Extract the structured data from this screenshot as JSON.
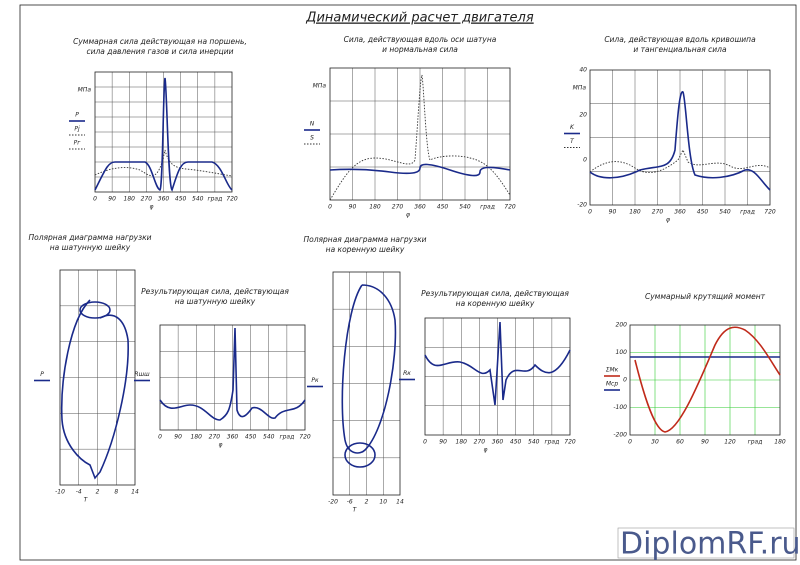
{
  "title": "Динамический расчет двигателя",
  "watermark": "DiplomRF.ru",
  "panels": [
    {
      "title": [
        "Суммарная сила действующая на поршень,",
        "сила давления газов и сила инерции"
      ],
      "unit": "МПа",
      "legend": [
        "P",
        "Pj",
        "Pг"
      ],
      "axis": "φ",
      "x_ticks": [
        "0",
        "90",
        "180",
        "270",
        "360",
        "450",
        "540",
        "град",
        "720"
      ],
      "y_ticks": []
    },
    {
      "title": [
        "Сила, действующая вдоль оси шатуна",
        "и нормальная сила"
      ],
      "unit": "МПа",
      "legend": [
        "N",
        "S"
      ],
      "axis": "φ",
      "x_ticks": [
        "0",
        "90",
        "180",
        "270",
        "360",
        "450",
        "540",
        "град",
        "720"
      ],
      "y_ticks": []
    },
    {
      "title": [
        "Сила, действующая вдоль кривошипа",
        "и тангенциальная сила"
      ],
      "unit": "МПа",
      "legend": [
        "K",
        "T"
      ],
      "axis": "φ",
      "x_ticks": [
        "0",
        "90",
        "180",
        "270",
        "360",
        "450",
        "540",
        "град",
        "720"
      ],
      "y_ticks": [
        "40",
        "20",
        "0",
        "-20"
      ]
    },
    {
      "title": [
        "Полярная диаграмма нагрузки",
        "на шатунную шейку"
      ],
      "unit": "",
      "legend": [
        "P"
      ],
      "axis": "T",
      "x_ticks": [
        "-10",
        "-4",
        "2",
        "8",
        "14"
      ],
      "y_ticks": []
    },
    {
      "title": [
        "Результирующая сила, действующая",
        "на шатунную шейку"
      ],
      "unit": "",
      "legend": [
        "Rшш"
      ],
      "axis": "φ",
      "x_ticks": [
        "0",
        "90",
        "180",
        "270",
        "360",
        "450",
        "540",
        "град",
        "720"
      ],
      "y_ticks": []
    },
    {
      "title": [
        "Полярная диаграмма нагрузки",
        "на коренную шейку"
      ],
      "unit": "",
      "legend": [
        "Pк"
      ],
      "axis": "T",
      "x_ticks": [
        "-20",
        "-6",
        "2",
        "10",
        "14"
      ],
      "y_ticks": []
    },
    {
      "title": [
        "Результирующая сила, действующая",
        "на коренную шейку"
      ],
      "unit": "",
      "legend": [
        "Rк"
      ],
      "axis": "φ",
      "x_ticks": [
        "0",
        "90",
        "180",
        "270",
        "360",
        "450",
        "540",
        "град",
        "720"
      ],
      "y_ticks": []
    },
    {
      "title": [
        "Суммарный крутящий момент"
      ],
      "unit": "",
      "legend": [
        "ΣMк",
        "Mср"
      ],
      "axis": "",
      "x_ticks": [
        "0",
        "30",
        "60",
        "90",
        "120",
        "град",
        "180"
      ],
      "y_ticks": [
        "200",
        "100",
        "0",
        "-100",
        "-200"
      ]
    }
  ]
}
